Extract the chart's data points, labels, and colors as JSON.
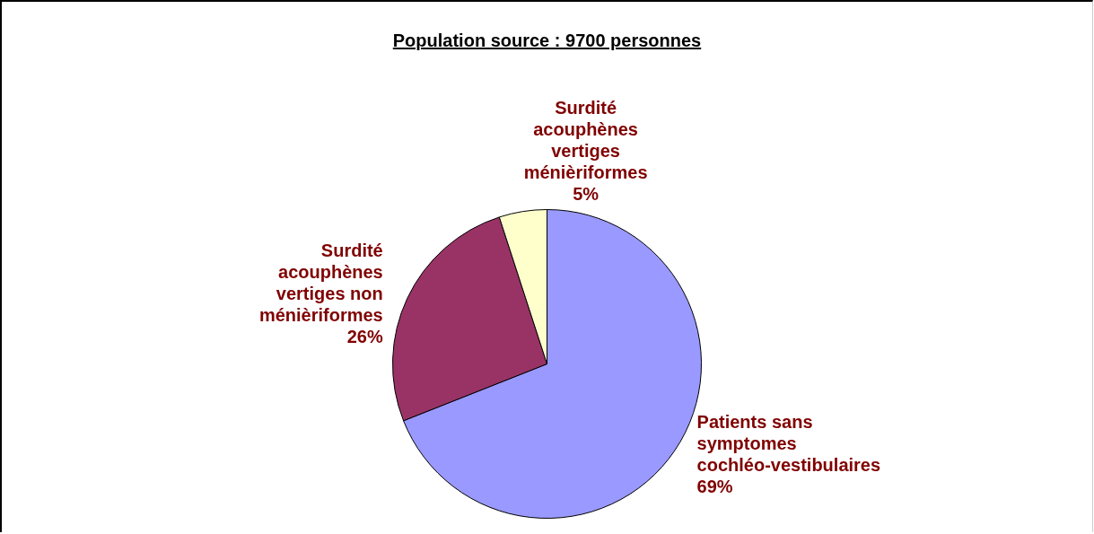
{
  "chart_data": {
    "type": "pie",
    "title": "Population source : 9700 personnes",
    "categories": [
      "Patients sans symptomes cochléo-vestibulaires",
      "Surdité acouphènes vertiges non ménièriformes",
      "Surdité acouphènes vertiges ménièriformes"
    ],
    "values": [
      69,
      26,
      5
    ],
    "value_labels": [
      "69%",
      "26%",
      "5%"
    ],
    "colors": [
      "#9999ff",
      "#993366",
      "#ffffcc"
    ],
    "legend": false
  }
}
